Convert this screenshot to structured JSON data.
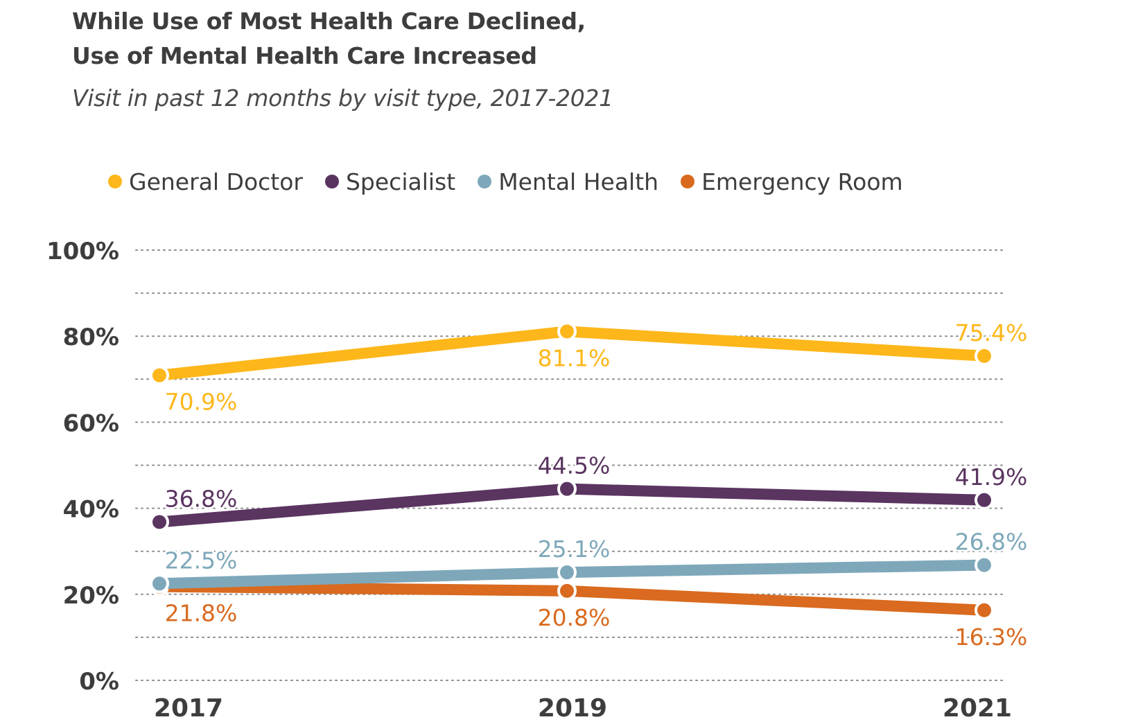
{
  "header": {
    "title_line1": "While Use of Most Health Care Declined,",
    "title_line2": "Use of Mental Health Care Increased",
    "subtitle": "Visit in past 12 months by visit type, 2017-2021"
  },
  "legend": [
    {
      "label": "General Doctor",
      "color": "#fdb71a"
    },
    {
      "label": "Specialist",
      "color": "#5a3560"
    },
    {
      "label": "Mental Health",
      "color": "#7ea8ba"
    },
    {
      "label": "Emergency Room",
      "color": "#d96a1f"
    }
  ],
  "chart_data": {
    "type": "line",
    "title": "While Use of Most Health Care Declined, Use of Mental Health Care Increased",
    "subtitle": "Visit in past 12 months by visit type, 2017-2021",
    "xlabel": "",
    "ylabel": "",
    "x": [
      "2017",
      "2019",
      "2021"
    ],
    "y_ticks": [
      "0%",
      "20%",
      "40%",
      "60%",
      "80%",
      "100%"
    ],
    "ylim": [
      0,
      100
    ],
    "grid": true,
    "legend_position": "top",
    "series": [
      {
        "name": "General Doctor",
        "color": "#fdb71a",
        "values": [
          70.9,
          81.1,
          75.4
        ],
        "labels": [
          "70.9%",
          "81.1%",
          "75.4%"
        ],
        "label_pos": [
          "below",
          "below",
          "above"
        ]
      },
      {
        "name": "Specialist",
        "color": "#5a3560",
        "values": [
          36.8,
          44.5,
          41.9
        ],
        "labels": [
          "36.8%",
          "44.5%",
          "41.9%"
        ],
        "label_pos": [
          "above",
          "above",
          "above"
        ]
      },
      {
        "name": "Mental Health",
        "color": "#7ea8ba",
        "values": [
          22.5,
          25.1,
          26.8
        ],
        "labels": [
          "22.5%",
          "25.1%",
          "26.8%"
        ],
        "label_pos": [
          "above",
          "above",
          "above"
        ]
      },
      {
        "name": "Emergency Room",
        "color": "#d96a1f",
        "values": [
          21.8,
          20.8,
          16.3
        ],
        "labels": [
          "21.8%",
          "20.8%",
          "16.3%"
        ],
        "label_pos": [
          "below",
          "below",
          "below"
        ]
      }
    ]
  }
}
